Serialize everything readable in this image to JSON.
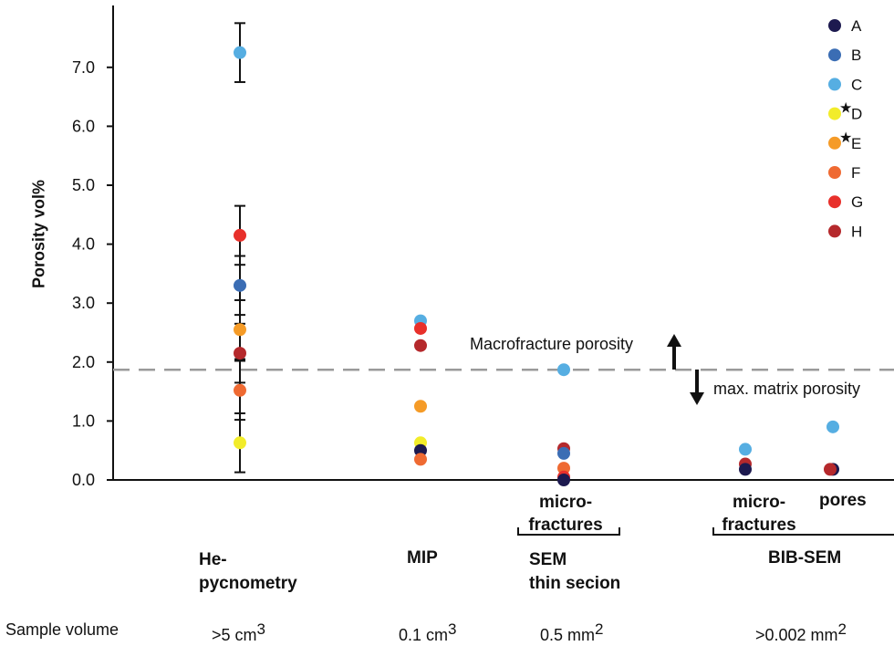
{
  "chart_data": {
    "type": "scatter",
    "ylabel": "Porosity vol%",
    "ylim": [
      0,
      8.0
    ],
    "yticks": [
      0.0,
      1.0,
      2.0,
      3.0,
      4.0,
      5.0,
      6.0,
      7.0
    ],
    "ytick_labels": [
      "0.0",
      "1.0",
      "2.0",
      "3.0",
      "4.0",
      "5.0",
      "6.0",
      "7.0"
    ],
    "legend_position": "top-right",
    "legend": [
      {
        "label": "A",
        "color": "#1d1a4f",
        "star": false
      },
      {
        "label": "B",
        "color": "#3b6db4",
        "star": false
      },
      {
        "label": "C",
        "color": "#56aee2",
        "star": false
      },
      {
        "label": "D",
        "color": "#f2ec2a",
        "star": true
      },
      {
        "label": "E",
        "color": "#f59b27",
        "star": true
      },
      {
        "label": "F",
        "color": "#ef6a32",
        "star": false
      },
      {
        "label": "G",
        "color": "#e8302b",
        "star": false
      },
      {
        "label": "H",
        "color": "#b5292c",
        "star": false
      }
    ],
    "groups": [
      {
        "key": "he",
        "points": [
          {
            "series": "C",
            "y": 7.25,
            "err": [
              6.75,
              7.75
            ]
          },
          {
            "series": "G",
            "y": 4.15,
            "err": [
              3.65,
              4.65
            ]
          },
          {
            "series": "B",
            "y": 3.3,
            "err": [
              2.8,
              3.8
            ]
          },
          {
            "series": "E",
            "y": 2.55,
            "err": [
              2.05,
              3.05
            ]
          },
          {
            "series": "H",
            "y": 2.15,
            "err": [
              1.65,
              2.65
            ]
          },
          {
            "series": "F",
            "y": 1.52,
            "err": [
              1.02,
              2.02
            ]
          },
          {
            "series": "D",
            "y": 0.63,
            "err": [
              0.13,
              1.13
            ]
          }
        ]
      },
      {
        "key": "mip",
        "points": [
          {
            "series": "C",
            "y": 2.7
          },
          {
            "series": "G",
            "y": 2.57
          },
          {
            "series": "H",
            "y": 2.28
          },
          {
            "series": "E",
            "y": 1.25
          },
          {
            "series": "D",
            "y": 0.63
          },
          {
            "series": "A",
            "y": 0.5
          },
          {
            "series": "F",
            "y": 0.35
          }
        ]
      },
      {
        "key": "sem",
        "points": [
          {
            "series": "C",
            "y": 1.87
          },
          {
            "series": "H",
            "y": 0.53
          },
          {
            "series": "B",
            "y": 0.45
          },
          {
            "series": "F",
            "y": 0.2
          },
          {
            "series": "G",
            "y": 0.05
          },
          {
            "series": "A",
            "y": 0.0
          }
        ]
      },
      {
        "key": "bib_micro",
        "points": [
          {
            "series": "C",
            "y": 0.52
          },
          {
            "series": "H",
            "y": 0.27
          },
          {
            "series": "A",
            "y": 0.18
          }
        ]
      },
      {
        "key": "bib_pores",
        "points": [
          {
            "series": "C",
            "y": 0.9
          },
          {
            "series": "A",
            "y": 0.18
          },
          {
            "series": "H",
            "y": 0.18
          }
        ]
      }
    ],
    "reference_line": {
      "y": 1.87,
      "style": "dashed"
    },
    "annotations": {
      "macro": "Macrofracture porosity",
      "matrix": "max. matrix porosity"
    },
    "category_labels": {
      "micro1": [
        "micro-",
        "fractures"
      ],
      "micro2": [
        "micro-",
        "fractures"
      ],
      "pores": "pores",
      "he": [
        "He-",
        "pycnometry"
      ],
      "mip": "MIP",
      "sem": [
        "SEM",
        "thin secion"
      ],
      "bib": "BIB-SEM"
    },
    "sample_volume": {
      "label": "Sample volume",
      "he": {
        "base": ">5 cm",
        "sup": "3"
      },
      "mip": {
        "base": "0.1 cm",
        "sup": "3"
      },
      "sem": {
        "base": "0.5 mm",
        "sup": "2"
      },
      "bib": {
        "base": ">0.002 mm",
        "sup": "2"
      }
    }
  }
}
